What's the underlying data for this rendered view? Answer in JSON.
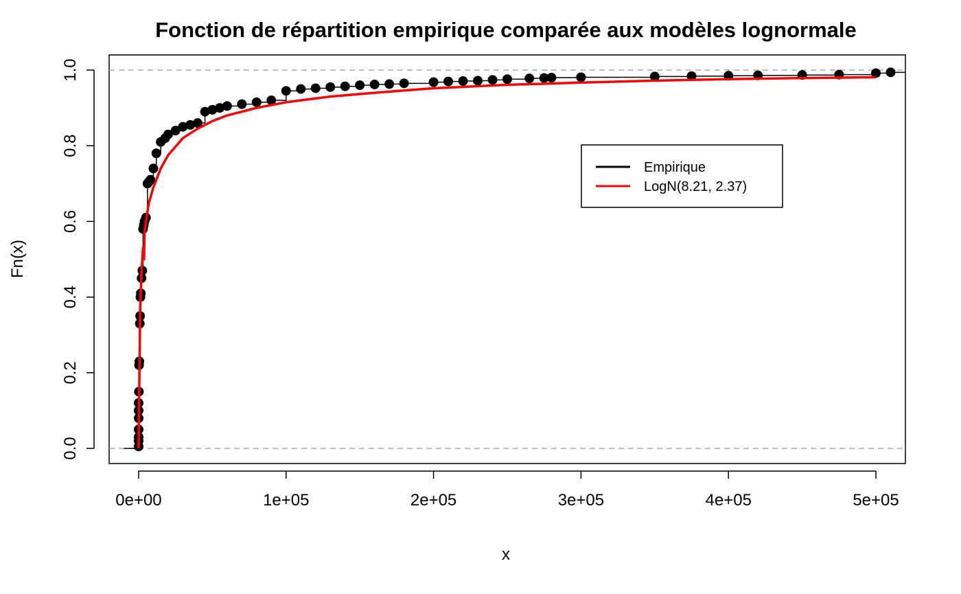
{
  "chart_data": {
    "type": "line",
    "title": "Fonction de répartition empirique comparée aux modèles lognormale",
    "xlabel": "x",
    "ylabel": "Fn(x)",
    "xlim": [
      -20000,
      520000
    ],
    "ylim": [
      -0.04,
      1.04
    ],
    "x_ticks": [
      0,
      100000,
      200000,
      300000,
      400000,
      500000
    ],
    "x_tick_labels": [
      "0e+00",
      "1e+05",
      "2e+05",
      "3e+05",
      "4e+05",
      "5e+05"
    ],
    "y_ticks": [
      0,
      0.2,
      0.4,
      0.6,
      0.8,
      1.0
    ],
    "y_tick_labels": [
      "0.0",
      "0.2",
      "0.4",
      "0.6",
      "0.8",
      "1.0"
    ],
    "reference_lines_y": [
      0,
      1
    ],
    "grid": false,
    "legend_position": "upper-right",
    "colors": {
      "empirical": "#000000",
      "lognormal": "#ff0000",
      "reference": "#aaaaaa"
    },
    "series": [
      {
        "name": "Empirique",
        "kind": "step-with-points",
        "x": [
          0,
          0,
          0,
          0,
          0,
          0,
          0,
          200,
          300,
          500,
          800,
          1000,
          1200,
          1500,
          2000,
          2500,
          3000,
          3500,
          4000,
          5000,
          6000,
          7000,
          8000,
          10000,
          12000,
          15000,
          18000,
          20000,
          25000,
          30000,
          35000,
          40000,
          45000,
          50000,
          55000,
          60000,
          70000,
          80000,
          90000,
          100000,
          110000,
          120000,
          130000,
          140000,
          150000,
          160000,
          170000,
          180000,
          200000,
          210000,
          220000,
          230000,
          240000,
          250000,
          265000,
          275000,
          280000,
          300000,
          350000,
          375000,
          400000,
          420000,
          450000,
          475000,
          500000,
          510000
        ],
        "y": [
          0.005,
          0.02,
          0.03,
          0.05,
          0.08,
          0.1,
          0.12,
          0.15,
          0.22,
          0.23,
          0.33,
          0.35,
          0.4,
          0.41,
          0.45,
          0.47,
          0.58,
          0.59,
          0.6,
          0.61,
          0.7,
          0.705,
          0.71,
          0.74,
          0.78,
          0.81,
          0.82,
          0.83,
          0.84,
          0.85,
          0.855,
          0.86,
          0.89,
          0.895,
          0.9,
          0.905,
          0.91,
          0.915,
          0.92,
          0.945,
          0.95,
          0.952,
          0.955,
          0.957,
          0.96,
          0.962,
          0.963,
          0.965,
          0.968,
          0.97,
          0.971,
          0.972,
          0.974,
          0.976,
          0.978,
          0.979,
          0.98,
          0.981,
          0.983,
          0.984,
          0.985,
          0.986,
          0.987,
          0.988,
          0.992,
          0.994
        ]
      },
      {
        "name": "LogN(8.21, 2.37)",
        "kind": "curve",
        "x": [
          0,
          1000,
          2000,
          3000,
          3690,
          4000,
          5000,
          7000,
          10000,
          15000,
          20000,
          30000,
          40000,
          50000,
          60000,
          80000,
          100000,
          130000,
          160000,
          200000,
          250000,
          300000,
          350000,
          400000,
          450000,
          500000
        ],
        "y": [
          0,
          0.36,
          0.47,
          0.53,
          0.5,
          0.57,
          0.6,
          0.65,
          0.69,
          0.74,
          0.775,
          0.82,
          0.845,
          0.865,
          0.88,
          0.9,
          0.915,
          0.93,
          0.94,
          0.952,
          0.961,
          0.967,
          0.972,
          0.976,
          0.979,
          0.981
        ]
      }
    ]
  }
}
